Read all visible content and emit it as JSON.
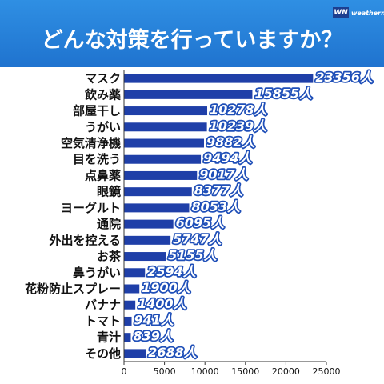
{
  "header": {
    "title": "どんな対策を行っていますか？",
    "logo_mark": "WN",
    "logo_text": "weathernews"
  },
  "colors": {
    "header_bg": "#2681dc",
    "bar": "#1f3fa8",
    "value_outline": "#1f4fb8"
  },
  "unit": "人",
  "chart_data": {
    "type": "bar",
    "orientation": "horizontal",
    "title": "どんな対策を行っていますか？",
    "xlabel": "",
    "ylabel": "",
    "xlim": [
      0,
      25000
    ],
    "xticks": [
      0,
      5000,
      10000,
      15000,
      20000,
      25000
    ],
    "grid": false,
    "categories": [
      "マスク",
      "飲み薬",
      "部屋干し",
      "うがい",
      "空気清浄機",
      "目を洗う",
      "点鼻薬",
      "眼鏡",
      "ヨーグルト",
      "通院",
      "外出を控える",
      "お茶",
      "鼻うがい",
      "花粉防止スプレー",
      "バナナ",
      "トマト",
      "青汁",
      "その他"
    ],
    "values": [
      23356,
      15855,
      10278,
      10239,
      9882,
      9494,
      9017,
      8377,
      8053,
      6095,
      5747,
      5155,
      2594,
      1900,
      1400,
      941,
      839,
      2688
    ],
    "value_labels": [
      "23356人",
      "15855人",
      "10278人",
      "10239人",
      "9882人",
      "9494人",
      "9017人",
      "8377人",
      "8053人",
      "6095人",
      "5747人",
      "5155人",
      "2594人",
      "1900人",
      "1400人",
      "941人",
      "839人",
      "2688人"
    ]
  }
}
